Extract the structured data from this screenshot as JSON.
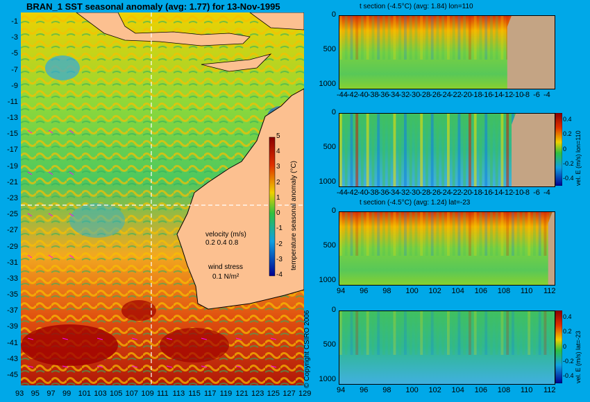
{
  "header": {
    "title": "BRAN_1  SST seasonal anomaly  (avg: 1.77) for 13-Nov-1995"
  },
  "map": {
    "y_ticks": [
      "-1",
      "-3",
      "-5",
      "-7",
      "-9",
      "-11",
      "-13",
      "-15",
      "-17",
      "-19",
      "-21",
      "-23",
      "-25",
      "-27",
      "-29",
      "-31",
      "-33",
      "-35",
      "-37",
      "-39",
      "-41",
      "-43",
      "-45"
    ],
    "x_ticks": [
      "93",
      "95",
      "97",
      "99",
      "101",
      "103",
      "105",
      "107",
      "109",
      "111",
      "113",
      "115",
      "117",
      "119",
      "121",
      "123",
      "125",
      "127",
      "129"
    ],
    "colorbar_label": "temperature seasonal anomaly (°C)",
    "colorbar_ticks": [
      "5",
      "4",
      "3",
      "2",
      "1",
      "0",
      "-1",
      "-2",
      "-3",
      "-4"
    ],
    "velocity_label": "velocity (m/s)",
    "velocity_values": "0.2 0.4 0.8",
    "wind_label": "wind stress",
    "wind_value": "0.1 N/m²",
    "copyright": "© Copyright CSIRO 2006"
  },
  "chart_data": [
    {
      "type": "heatmap",
      "title": "t section (-4.5°C)  (avg: 1.84) lon=110",
      "x_ticks": [
        "-44",
        "-42",
        "-40",
        "-38",
        "-36",
        "-34",
        "-32",
        "-30",
        "-28",
        "-26",
        "-24",
        "-22",
        "-20",
        "-18",
        "-16",
        "-14",
        "-12",
        "-10",
        "-8",
        "-6",
        "-4"
      ],
      "y_ticks": [
        "0",
        "500",
        "1000"
      ],
      "ylim": [
        1050,
        0
      ],
      "colors": {
        "warm": "#c0300a",
        "mid": "#7ad040",
        "cool": "#3aa0e0",
        "land": "#c4a484"
      }
    },
    {
      "type": "heatmap",
      "title": "",
      "x_ticks": [
        "-44",
        "-42",
        "-40",
        "-38",
        "-36",
        "-34",
        "-32",
        "-30",
        "-28",
        "-26",
        "-24",
        "-22",
        "-20",
        "-18",
        "-16",
        "-14",
        "-12",
        "-10",
        "-8",
        "-6",
        "-4"
      ],
      "y_ticks": [
        "0",
        "500",
        "1000"
      ],
      "ylim": [
        1050,
        0
      ],
      "colorbar_label": "vel. E (m/s) lon=110",
      "colorbar_ticks": [
        "0.4",
        "0.2",
        "0",
        "-0.2",
        "-0.4"
      ]
    },
    {
      "type": "heatmap",
      "title": "t section (-4.5°C)  (avg: 1.24) lat=-23",
      "x_ticks": [
        "94",
        "96",
        "98",
        "100",
        "102",
        "104",
        "106",
        "108",
        "110",
        "112"
      ],
      "y_ticks": [
        "0",
        "500",
        "1000"
      ],
      "ylim": [
        1050,
        0
      ]
    },
    {
      "type": "heatmap",
      "title": "",
      "x_ticks": [
        "94",
        "96",
        "98",
        "100",
        "102",
        "104",
        "106",
        "108",
        "110",
        "112"
      ],
      "y_ticks": [
        "0",
        "500",
        "1000"
      ],
      "ylim": [
        1050,
        0
      ],
      "colorbar_label": "vel. E (m/s) lat=-23",
      "colorbar_ticks": [
        "0.4",
        "0.2",
        "0",
        "-0.2",
        "-0.4"
      ]
    }
  ]
}
